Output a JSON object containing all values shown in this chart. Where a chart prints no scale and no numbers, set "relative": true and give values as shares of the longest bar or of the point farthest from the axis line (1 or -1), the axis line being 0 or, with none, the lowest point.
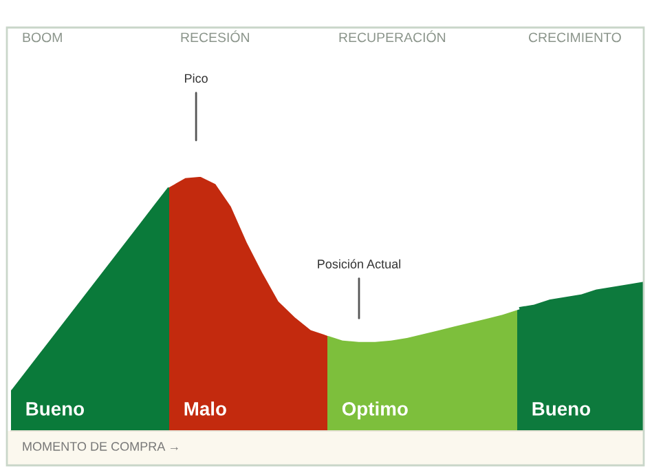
{
  "chart_data": {
    "type": "area",
    "relative": true,
    "xlabel": "MOMENTO DE COMPRA →",
    "categories": [
      null,
      null,
      null,
      null,
      null,
      null,
      null,
      null,
      null,
      null,
      null,
      null,
      null,
      null,
      null,
      null,
      null,
      null,
      null,
      null,
      null,
      null,
      null,
      null,
      null,
      null,
      null,
      null,
      null,
      null,
      null,
      null,
      null,
      null,
      null,
      null,
      null,
      null,
      null,
      null,
      null
    ],
    "series": [
      {
        "name": "Bueno",
        "color": "#0a7a3a",
        "values": [
          0.17,
          0.25,
          0.33,
          0.41,
          0.49,
          0.57,
          0.65,
          0.73,
          0.81,
          0.89,
          0.97,
          null,
          null,
          null,
          null,
          null,
          null,
          null,
          null,
          null,
          null,
          null,
          null,
          null,
          null,
          null,
          null,
          null,
          null,
          null,
          null,
          null,
          null,
          null,
          null,
          null,
          null,
          null,
          null,
          null,
          null
        ]
      },
      {
        "name": "Malo",
        "color": "#c32a0e",
        "values": [
          null,
          null,
          null,
          null,
          null,
          null,
          null,
          null,
          null,
          null,
          0.96,
          0.995,
          1.0,
          0.97,
          0.88,
          0.74,
          0.62,
          0.51,
          0.45,
          0.4,
          0.38,
          null,
          null,
          null,
          null,
          null,
          null,
          null,
          null,
          null,
          null,
          null,
          null,
          null,
          null,
          null,
          null,
          null,
          null,
          null,
          null
        ]
      },
      {
        "name": "Optimo",
        "color": "#7dbf3c",
        "values": [
          null,
          null,
          null,
          null,
          null,
          null,
          null,
          null,
          null,
          null,
          null,
          null,
          null,
          null,
          null,
          null,
          null,
          null,
          null,
          null,
          0.38,
          0.36,
          0.355,
          0.355,
          0.36,
          0.37,
          0.385,
          0.4,
          0.415,
          0.43,
          0.445,
          0.46,
          0.48,
          null,
          null,
          null,
          null,
          null,
          null,
          null,
          null
        ]
      },
      {
        "name": "Bueno",
        "color": "#0d7a3d",
        "values": [
          null,
          null,
          null,
          null,
          null,
          null,
          null,
          null,
          null,
          null,
          null,
          null,
          null,
          null,
          null,
          null,
          null,
          null,
          null,
          null,
          null,
          null,
          null,
          null,
          null,
          null,
          null,
          null,
          null,
          null,
          null,
          null,
          0.49,
          0.5,
          0.52,
          0.53,
          0.54,
          0.56,
          0.57,
          0.58,
          0.59
        ]
      }
    ],
    "annotations": [
      "BOOM",
      "RECESIÓN",
      "RECUPERACIÓN",
      "CRECIMIENTO",
      "Pico",
      "Posición Actual"
    ]
  }
}
